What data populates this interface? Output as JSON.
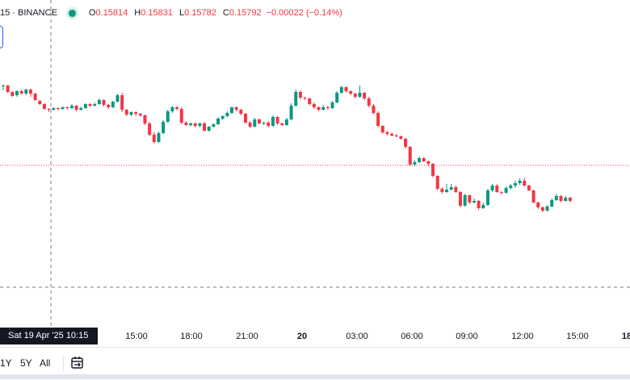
{
  "legend": {
    "symbol": "15 · BINANCE",
    "open_key": "O",
    "open": "0.15814",
    "high_key": "H",
    "high": "0.15831",
    "low_key": "L",
    "low": "0.15782",
    "close_key": "C",
    "close": "0.15792",
    "change": "−0.00022 (−0.14%)"
  },
  "crosshair_label": "Sat 19 Apr '25   10:15",
  "x_axis_ticks": [
    "15:00",
    "18:00",
    "21:00",
    "20",
    "03:00",
    "06:00",
    "09:00",
    "12:00",
    "15:00",
    "18"
  ],
  "range_buttons": [
    "1Y",
    "5Y",
    "All"
  ],
  "colors": {
    "up": "#089981",
    "down": "#f23645",
    "price_line": "#f23645",
    "crosshair": "#787b86"
  },
  "icons": {
    "goto_date": "calendar-goto-icon"
  },
  "chart_data": {
    "type": "candlestick",
    "timeframe_minutes": 15,
    "x_start": "Sat 19 Apr '25 10:15",
    "x_ticks": [
      "15:00",
      "18:00",
      "21:00",
      "20",
      "03:00",
      "06:00",
      "09:00",
      "12:00",
      "15:00",
      "18"
    ],
    "legend": {
      "open": 0.15814,
      "high": 0.15831,
      "low": 0.15782,
      "close": 0.15792
    },
    "candles": [
      [
        100,
        100,
        94,
        101
      ],
      [
        100,
        92,
        91,
        101
      ],
      [
        92,
        87,
        86,
        93
      ],
      [
        88,
        93,
        86,
        94
      ],
      [
        93,
        90,
        89,
        95
      ],
      [
        90,
        95,
        88,
        96
      ],
      [
        95,
        90,
        86,
        96
      ],
      [
        90,
        82,
        81,
        91
      ],
      [
        81,
        77,
        76,
        82
      ],
      [
        77,
        71,
        70,
        78
      ],
      [
        71,
        70,
        67,
        72
      ],
      [
        70,
        72,
        69,
        73
      ],
      [
        72,
        71,
        69,
        73
      ],
      [
        71,
        73,
        70,
        74
      ],
      [
        73,
        72,
        70,
        74
      ],
      [
        72,
        75,
        71,
        77
      ],
      [
        75,
        70,
        68,
        76
      ],
      [
        70,
        72,
        69,
        74
      ],
      [
        72,
        77,
        71,
        78
      ],
      [
        77,
        75,
        73,
        78
      ],
      [
        75,
        77,
        74,
        79
      ],
      [
        77,
        82,
        76,
        84
      ],
      [
        82,
        76,
        74,
        83
      ],
      [
        76,
        73,
        71,
        77
      ],
      [
        73,
        80,
        72,
        81
      ],
      [
        80,
        88,
        79,
        90
      ],
      [
        88,
        70,
        67,
        91
      ],
      [
        70,
        64,
        62,
        71
      ],
      [
        64,
        67,
        62,
        68
      ],
      [
        67,
        65,
        62,
        68
      ],
      [
        65,
        63,
        61,
        66
      ],
      [
        63,
        53,
        51,
        64
      ],
      [
        53,
        39,
        37,
        55
      ],
      [
        39,
        30,
        28,
        42
      ],
      [
        30,
        41,
        29,
        43
      ],
      [
        41,
        55,
        40,
        57
      ],
      [
        55,
        68,
        54,
        70
      ],
      [
        68,
        73,
        66,
        75
      ],
      [
        73,
        71,
        69,
        75
      ],
      [
        71,
        54,
        52,
        73
      ],
      [
        54,
        51,
        50,
        56
      ],
      [
        51,
        53,
        49,
        54
      ],
      [
        53,
        50,
        48,
        54
      ],
      [
        50,
        53,
        48,
        54
      ],
      [
        53,
        44,
        43,
        55
      ],
      [
        44,
        49,
        43,
        50
      ],
      [
        49,
        52,
        48,
        53
      ],
      [
        52,
        59,
        51,
        61
      ],
      [
        59,
        62,
        57,
        63
      ],
      [
        62,
        66,
        61,
        68
      ],
      [
        66,
        73,
        65,
        74
      ],
      [
        73,
        70,
        68,
        74
      ],
      [
        70,
        65,
        63,
        71
      ],
      [
        65,
        54,
        53,
        66
      ],
      [
        54,
        49,
        47,
        56
      ],
      [
        49,
        58,
        48,
        60
      ],
      [
        58,
        53,
        52,
        59
      ],
      [
        53,
        54,
        51,
        55
      ],
      [
        54,
        50,
        48,
        56
      ],
      [
        50,
        61,
        49,
        63
      ],
      [
        61,
        53,
        51,
        62
      ],
      [
        53,
        51,
        50,
        54
      ],
      [
        51,
        58,
        50,
        60
      ],
      [
        58,
        75,
        57,
        78
      ],
      [
        75,
        92,
        74,
        95
      ],
      [
        92,
        85,
        83,
        94
      ],
      [
        85,
        84,
        82,
        86
      ],
      [
        84,
        77,
        75,
        85
      ],
      [
        77,
        73,
        71,
        79
      ],
      [
        73,
        70,
        68,
        74
      ],
      [
        70,
        73,
        69,
        76
      ],
      [
        73,
        72,
        70,
        75
      ],
      [
        72,
        79,
        71,
        81
      ],
      [
        79,
        91,
        78,
        93
      ],
      [
        91,
        98,
        90,
        100
      ],
      [
        98,
        93,
        91,
        99
      ],
      [
        93,
        90,
        88,
        94
      ],
      [
        90,
        86,
        84,
        91
      ],
      [
        86,
        91,
        85,
        100
      ],
      [
        91,
        84,
        82,
        92
      ],
      [
        84,
        75,
        73,
        86
      ],
      [
        75,
        66,
        64,
        77
      ],
      [
        66,
        50,
        48,
        68
      ],
      [
        50,
        42,
        40,
        51
      ],
      [
        42,
        40,
        38,
        44
      ],
      [
        40,
        38,
        37,
        42
      ],
      [
        38,
        37,
        36,
        40
      ],
      [
        37,
        34,
        33,
        38
      ],
      [
        34,
        24,
        22,
        35
      ],
      [
        24,
        2,
        0,
        25
      ],
      [
        2,
        5,
        0,
        8
      ],
      [
        5,
        10,
        4,
        12
      ],
      [
        10,
        6,
        5,
        11
      ],
      [
        6,
        3,
        0,
        7
      ],
      [
        3,
        -12,
        -14,
        4
      ],
      [
        -12,
        -28,
        -30,
        -11
      ],
      [
        -28,
        -32,
        -34,
        -26
      ],
      [
        -32,
        -29,
        -33,
        -22
      ],
      [
        -29,
        -26,
        -30,
        -22
      ],
      [
        -26,
        -32,
        -33,
        -24
      ],
      [
        -32,
        -49,
        -51,
        -31
      ],
      [
        -49,
        -36,
        -50,
        -34
      ],
      [
        -36,
        -45,
        -47,
        -35
      ],
      [
        -45,
        -43,
        -46,
        -40
      ],
      [
        -43,
        -52,
        -54,
        -42
      ],
      [
        -52,
        -48,
        -53,
        -45
      ],
      [
        -48,
        -30,
        -49,
        -28
      ],
      [
        -30,
        -24,
        -32,
        -22
      ],
      [
        -24,
        -32,
        -33,
        -22
      ],
      [
        -32,
        -33,
        -35,
        -31
      ],
      [
        -33,
        -27,
        -34,
        -25
      ],
      [
        -27,
        -24,
        -29,
        -22
      ],
      [
        -24,
        -21,
        -27,
        -18
      ],
      [
        -21,
        -18,
        -23,
        -15
      ],
      [
        -18,
        -24,
        -25,
        -14
      ],
      [
        -24,
        -30,
        -31,
        -23
      ],
      [
        -30,
        -45,
        -46,
        -29
      ],
      [
        -45,
        -51,
        -53,
        -44
      ],
      [
        -51,
        -55,
        -57,
        -50
      ],
      [
        -55,
        -50,
        -56,
        -48
      ],
      [
        -50,
        -42,
        -51,
        -40
      ],
      [
        -42,
        -37,
        -43,
        -34
      ],
      [
        -37,
        -43,
        -45,
        -36
      ],
      [
        -43,
        -39,
        -44,
        -37
      ],
      [
        -39,
        -43,
        -45,
        -38
      ]
    ],
    "current_price_line": 0.15792,
    "crosshair_price_line": true,
    "grid": false
  }
}
